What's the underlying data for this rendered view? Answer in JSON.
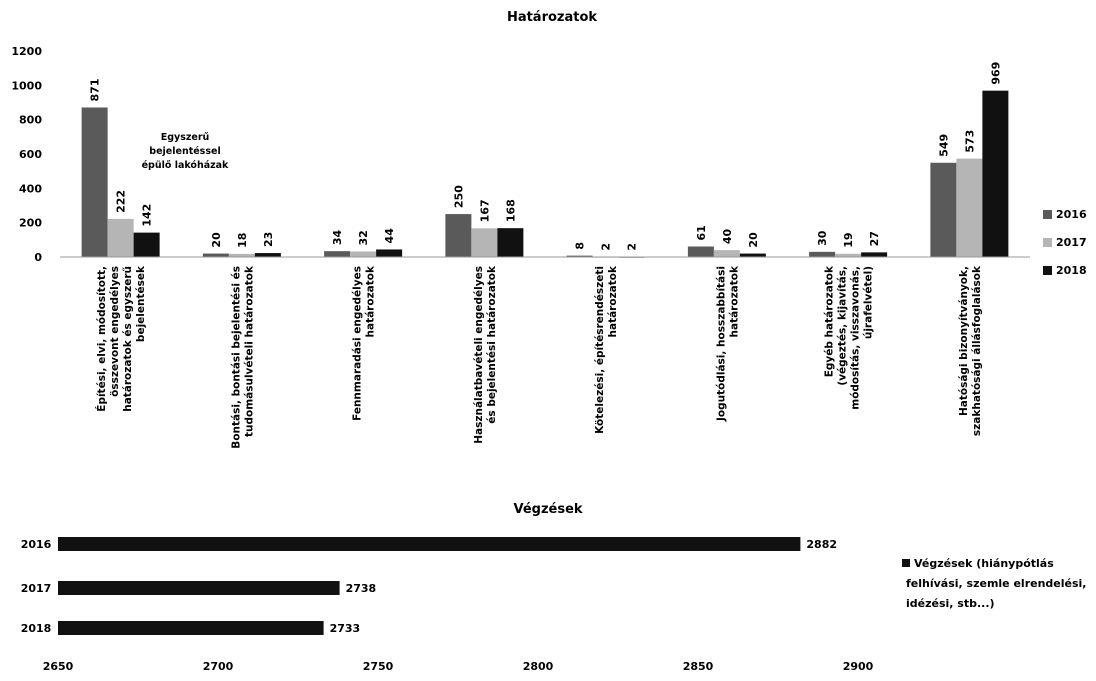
{
  "chart_data": [
    {
      "type": "bar",
      "title": "Határozatok",
      "ylim": [
        0,
        1200
      ],
      "yticks": [
        "0",
        "200",
        "400",
        "600",
        "800",
        "1000",
        "1200"
      ],
      "categories": [
        [
          "Építési, elvi, módosított,",
          "összevont engedélyes",
          "határozatok és egyszerű",
          "bejelentések"
        ],
        [
          "Bontási, bontási bejelentési és",
          "tudomásulvételi határozatok"
        ],
        [
          "Fennmaradási engedélyes",
          "határozatok"
        ],
        [
          "Használatbavételi engedélyes",
          "és bejelentési határozatok"
        ],
        [
          "Kötelezési, építésrendészeti",
          "határozatok"
        ],
        [
          "Jogutódlási, hosszabbítási",
          "határozatok"
        ],
        [
          "Egyéb határozatok",
          "(végeztés, kijavítás,",
          "módosítás, visszavonás,",
          "újrafelvétel)"
        ],
        [
          "Hatósági bizonyítványok,",
          "szakhatósági állásfoglalások"
        ]
      ],
      "series": [
        {
          "name": "2016",
          "color": "#5a5a5a",
          "values": [
            871,
            20,
            34,
            250,
            8,
            61,
            30,
            549
          ]
        },
        {
          "name": "2017",
          "color": "#b5b5b5",
          "values": [
            222,
            18,
            32,
            167,
            2,
            40,
            19,
            573
          ]
        },
        {
          "name": "2018",
          "color": "#111111",
          "values": [
            142,
            23,
            44,
            168,
            2,
            20,
            27,
            969
          ]
        }
      ],
      "annotation": [
        "Egyszerű",
        "bejelentéssel",
        "épülő lakóházak"
      ],
      "legend_position": "right"
    },
    {
      "type": "bar",
      "orientation": "horizontal",
      "title": "Végzések",
      "categories": [
        "2016",
        "2017",
        "2018"
      ],
      "values": [
        2882,
        2738,
        2733
      ],
      "xlim": [
        2650,
        2900
      ],
      "xticks": [
        "2650",
        "2700",
        "2750",
        "2800",
        "2850",
        "2900"
      ],
      "color": "#111111",
      "legend": [
        "Végzések (hiánypótlás",
        "felhívási, szemle elrendelési,",
        "idézési, stb...)"
      ],
      "legend_position": "right"
    }
  ]
}
